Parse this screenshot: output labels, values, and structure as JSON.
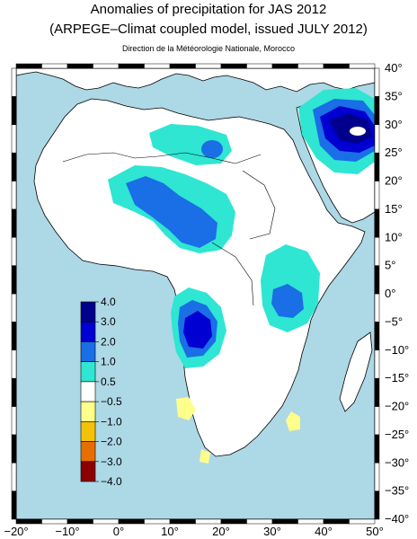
{
  "title": "Anomalies of precipitation for JAS 2012",
  "subtitle": "(ARPEGE–Climat coupled model, issued JULY 2012)",
  "credit": "Direction de la Météorologie Nationale, Morocco",
  "axes": {
    "lon_labels": [
      "−20°",
      "−10°",
      "0°",
      "10°",
      "20°",
      "30°",
      "40°",
      "50°"
    ],
    "lat_labels": [
      "40°",
      "35°",
      "30°",
      "25°",
      "20°",
      "15°",
      "10°",
      "5°",
      "0°",
      "−5°",
      "−10°",
      "−15°",
      "−20°",
      "−25°",
      "−30°",
      "−35°",
      "−40°"
    ],
    "lon_range": [
      -20,
      50
    ],
    "lat_range": [
      -40,
      40
    ]
  },
  "legend": {
    "labels": [
      "4.0",
      "3.0",
      "2.0",
      "1.0",
      "0.5",
      "−0.5",
      "−1.0",
      "−2.0",
      "−3.0",
      "−4.0"
    ],
    "colors": [
      "#00008c",
      "#0000d2",
      "#1a6ee6",
      "#2ee6d2",
      "#ffffff",
      "#ffff8c",
      "#f2c20a",
      "#e66e00",
      "#8c0000"
    ]
  },
  "colors": {
    "ocean": "#add8e6",
    "land": "#ffffff",
    "frame": "#000000"
  }
}
